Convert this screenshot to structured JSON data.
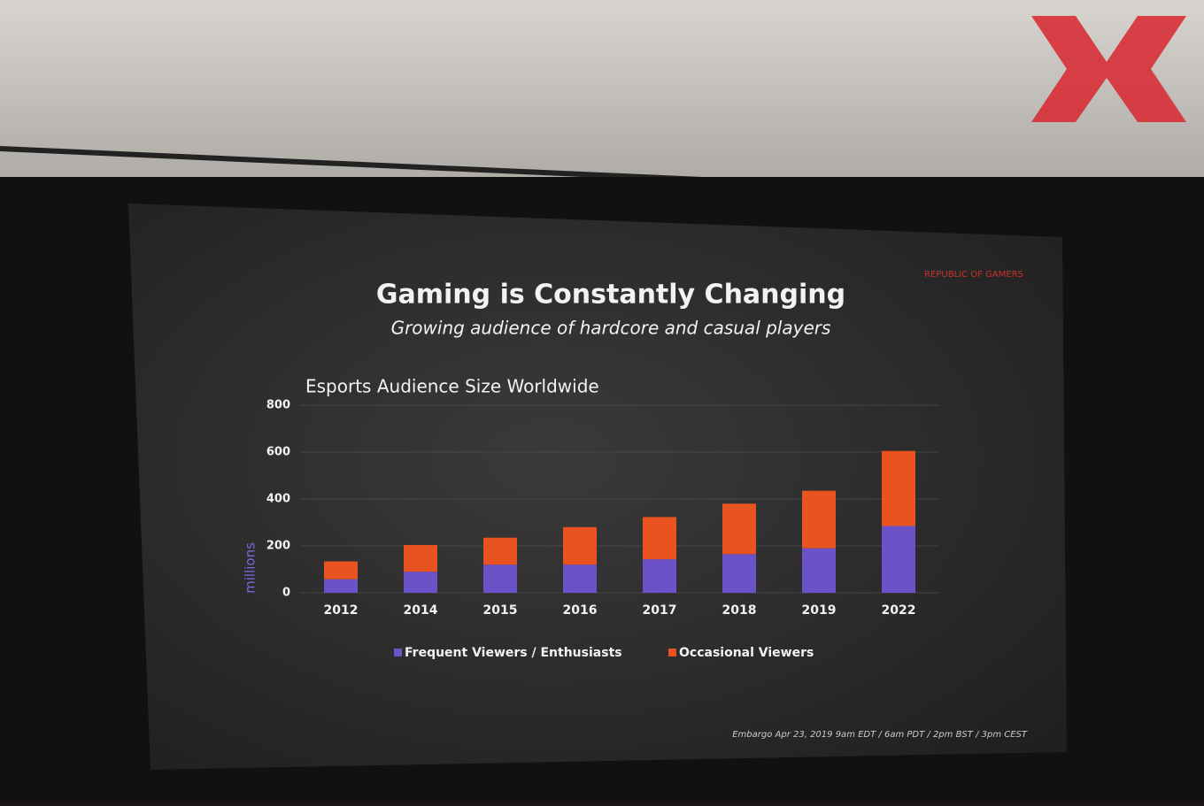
{
  "slide": {
    "title": "Gaming is Constantly Changing",
    "subtitle": "Growing audience of hardcore and casual players",
    "logo": "REPUBLIC OF GAMERS",
    "footnote": "Embargo Apr 23, 2019  9am EDT / 6am PDT / 2pm BST / 3pm CEST"
  },
  "chart_data": {
    "type": "stacked-bar",
    "title": "Esports Audience Size Worldwide",
    "y_label": "millions",
    "categories": [
      "2012",
      "2014",
      "2015",
      "2016",
      "2017",
      "2018",
      "2019",
      "2022"
    ],
    "series": [
      {
        "name": "Frequent Viewers / Enthusiasts",
        "color": "#6c52c8",
        "values": [
          58,
          90,
          120,
          120,
          143,
          165,
          190,
          285
        ]
      },
      {
        "name": "Occasional Viewers",
        "color": "#e8531f",
        "values": [
          76,
          114,
          115,
          160,
          180,
          215,
          245,
          320
        ]
      }
    ],
    "ylim": [
      0,
      800
    ],
    "yticks": [
      0,
      200,
      400,
      600,
      800
    ],
    "grid": true
  }
}
